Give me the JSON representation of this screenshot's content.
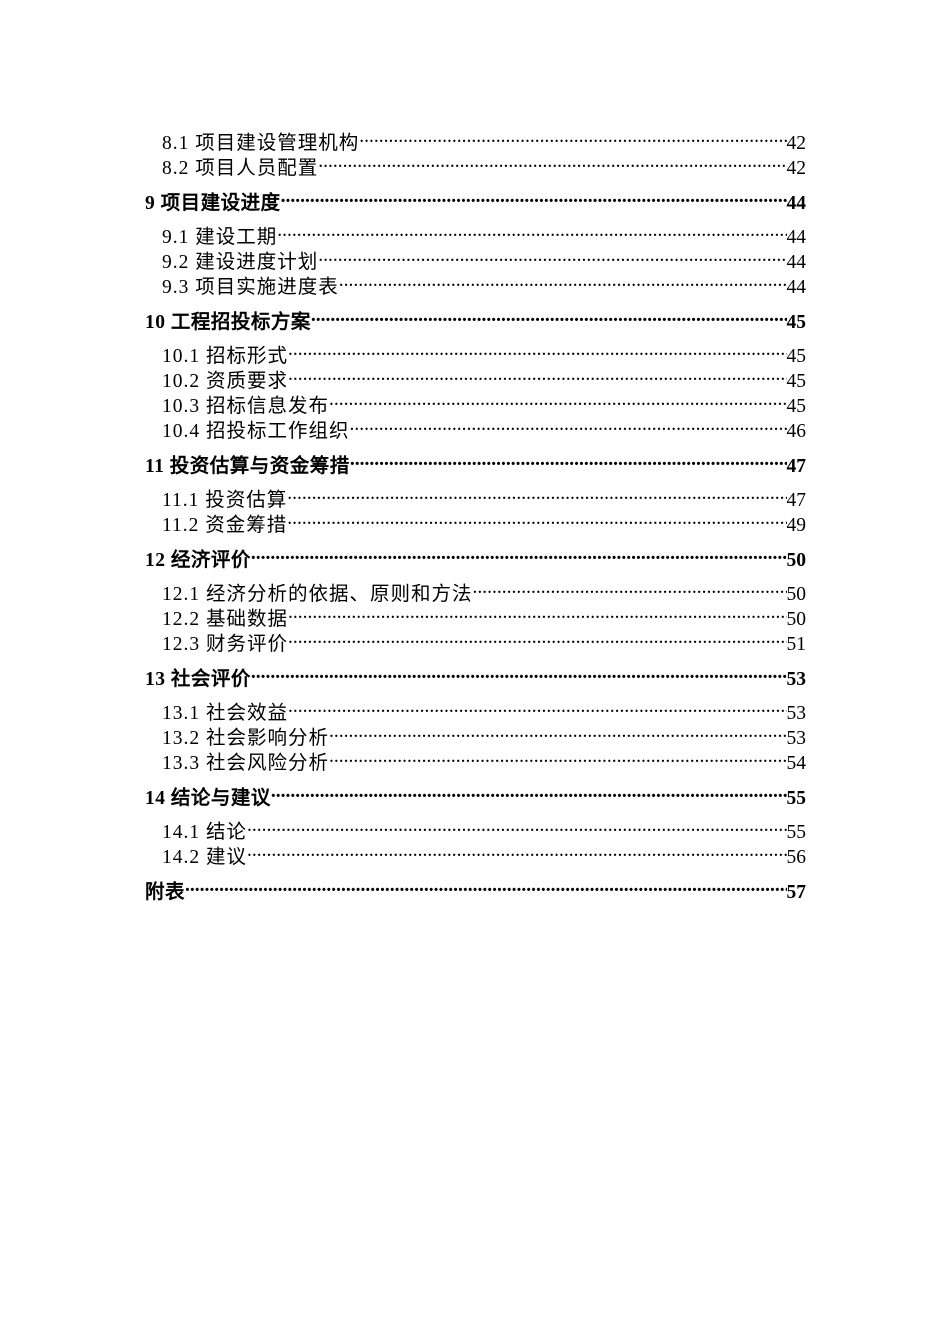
{
  "toc": [
    {
      "level": 2,
      "title": "8.1 项目建设管理机构",
      "page": "42"
    },
    {
      "level": 2,
      "title": "8.2 项目人员配置",
      "page": "42"
    },
    {
      "level": 1,
      "title": "9  项目建设进度",
      "page": "44"
    },
    {
      "level": 2,
      "title": "9.1 建设工期",
      "page": "44"
    },
    {
      "level": 2,
      "title": "9.2 建设进度计划",
      "page": "44"
    },
    {
      "level": 2,
      "title": "9.3 项目实施进度表",
      "page": "44"
    },
    {
      "level": 1,
      "title": "10  工程招投标方案",
      "page": "45"
    },
    {
      "level": 2,
      "title": "10.1 招标形式",
      "page": "45"
    },
    {
      "level": 2,
      "title": "10.2 资质要求",
      "page": "45"
    },
    {
      "level": 2,
      "title": "10.3 招标信息发布",
      "page": "45"
    },
    {
      "level": 2,
      "title": "10.4 招投标工作组织",
      "page": "46"
    },
    {
      "level": 1,
      "title": "11  投资估算与资金筹措",
      "page": "47"
    },
    {
      "level": 2,
      "title": "11.1 投资估算",
      "page": "47"
    },
    {
      "level": 2,
      "title": "11.2 资金筹措",
      "page": "49"
    },
    {
      "level": 1,
      "title": "12  经济评价",
      "page": "50"
    },
    {
      "level": 2,
      "title": "12.1 经济分析的依据、原则和方法",
      "page": "50"
    },
    {
      "level": 2,
      "title": "12.2 基础数据",
      "page": "50"
    },
    {
      "level": 2,
      "title": "12.3 财务评价",
      "page": "51"
    },
    {
      "level": 1,
      "title": "13 社会评价",
      "page": "53"
    },
    {
      "level": 2,
      "title": "13.1 社会效益",
      "page": "53"
    },
    {
      "level": 2,
      "title": "13.2 社会影响分析",
      "page": "53"
    },
    {
      "level": 2,
      "title": "13.3 社会风险分析",
      "page": "54"
    },
    {
      "level": 1,
      "title": "14 结论与建议",
      "page": "55"
    },
    {
      "level": 2,
      "title": "14.1 结论",
      "page": "55"
    },
    {
      "level": 2,
      "title": "14.2 建议",
      "page": "56"
    },
    {
      "level": 1,
      "title": "附表",
      "page": "57"
    }
  ]
}
